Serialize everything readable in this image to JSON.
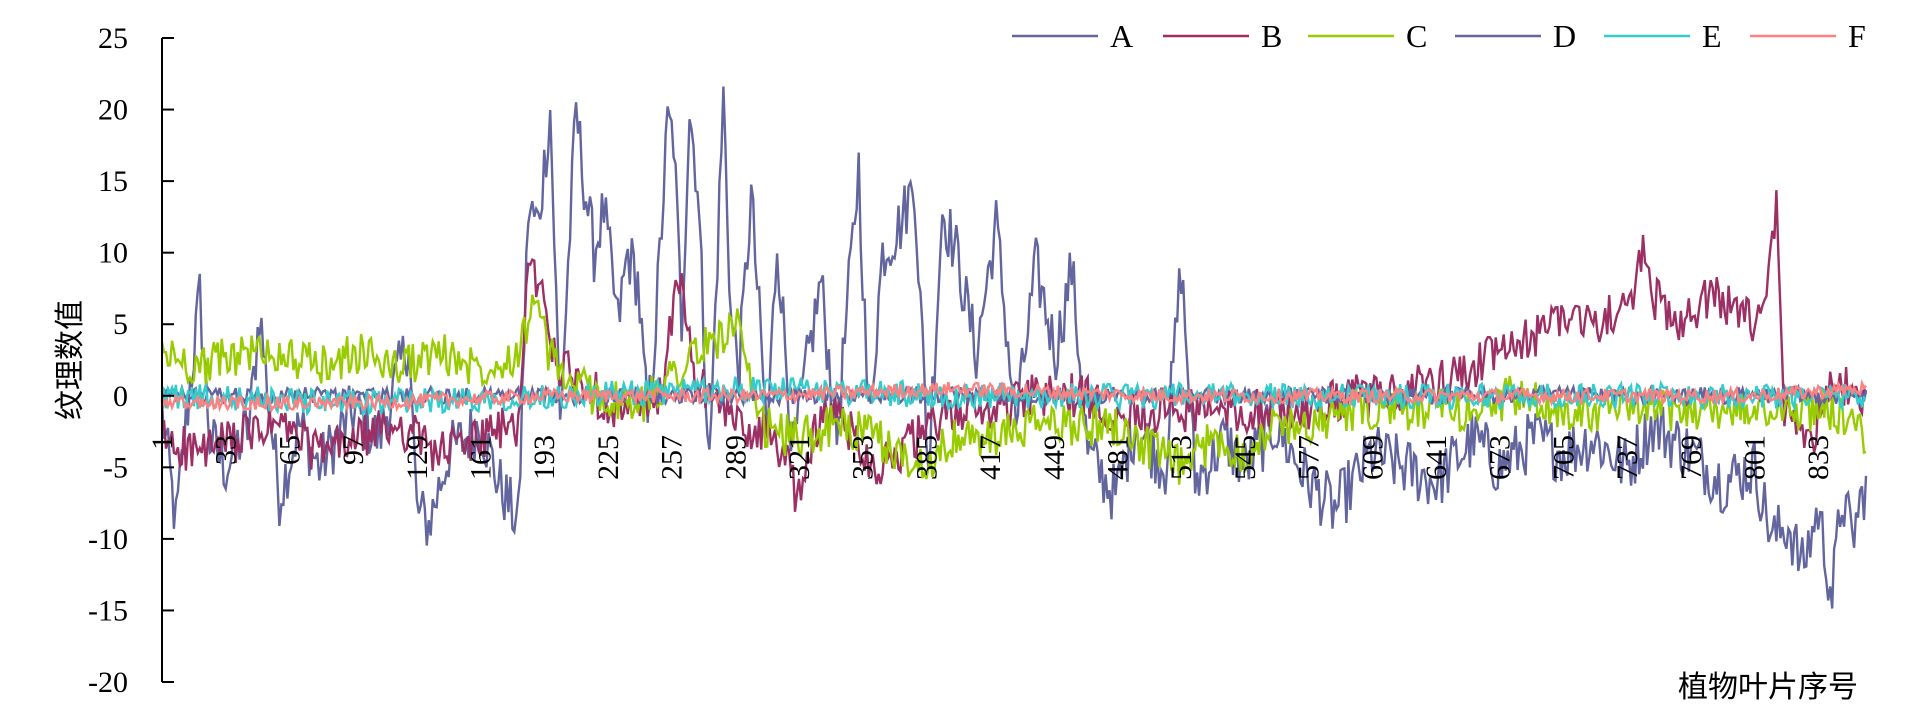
{
  "chart_data": {
    "type": "line",
    "xlabel": "植物叶片序号",
    "ylabel": "纹理数值",
    "ylim": [
      -20,
      25
    ],
    "xlim": [
      1,
      857
    ],
    "yticks": [
      25,
      20,
      15,
      10,
      5,
      0,
      -5,
      -10,
      -15,
      -20
    ],
    "xticks": [
      1,
      33,
      65,
      97,
      129,
      161,
      193,
      225,
      257,
      289,
      321,
      353,
      385,
      417,
      449,
      481,
      513,
      545,
      577,
      609,
      641,
      673,
      705,
      737,
      769,
      801,
      833
    ],
    "legend_position": "top-right",
    "series": [
      {
        "name": "A",
        "color": "#63659e",
        "points": [
          [
            1,
            -1
          ],
          [
            8,
            -9
          ],
          [
            13,
            -2
          ],
          [
            20,
            7
          ],
          [
            25,
            -3
          ],
          [
            33,
            -5
          ],
          [
            45,
            -2
          ],
          [
            50,
            6
          ],
          [
            55,
            -1
          ],
          [
            60,
            -7
          ],
          [
            70,
            -2
          ],
          [
            80,
            -5
          ],
          [
            97,
            -1
          ],
          [
            110,
            -3
          ],
          [
            125,
            4
          ],
          [
            129,
            -8
          ],
          [
            135,
            -9
          ],
          [
            145,
            -4
          ],
          [
            161,
            -2
          ],
          [
            170,
            -6
          ],
          [
            180,
            -9
          ],
          [
            185,
            13
          ],
          [
            190,
            12
          ],
          [
            196,
            20
          ],
          [
            201,
            -2
          ],
          [
            209,
            20
          ],
          [
            213,
            15
          ],
          [
            218,
            10
          ],
          [
            223,
            13
          ],
          [
            230,
            5
          ],
          [
            235,
            10
          ],
          [
            240,
            8
          ],
          [
            245,
            -2
          ],
          [
            249,
            5
          ],
          [
            255,
            19
          ],
          [
            258,
            18
          ],
          [
            262,
            5
          ],
          [
            266,
            20
          ],
          [
            270,
            15
          ],
          [
            276,
            -5
          ],
          [
            283,
            21
          ],
          [
            287,
            5
          ],
          [
            291,
            2
          ],
          [
            297,
            14
          ],
          [
            305,
            -3
          ],
          [
            310,
            11
          ],
          [
            318,
            -4
          ],
          [
            326,
            3
          ],
          [
            332,
            8
          ],
          [
            340,
            -3
          ],
          [
            351,
            16
          ],
          [
            356,
            -2
          ],
          [
            363,
            10
          ],
          [
            372,
            12
          ],
          [
            379,
            15
          ],
          [
            386,
            -5
          ],
          [
            393,
            13
          ],
          [
            400,
            10
          ],
          [
            410,
            3
          ],
          [
            420,
            12
          ],
          [
            430,
            -2
          ],
          [
            440,
            9
          ],
          [
            450,
            3
          ],
          [
            458,
            9
          ],
          [
            466,
            -4
          ],
          [
            480,
            -7
          ],
          [
            490,
            -2
          ],
          [
            505,
            -5
          ],
          [
            513,
            9
          ],
          [
            520,
            -6
          ],
          [
            535,
            -3
          ],
          [
            545,
            -5
          ],
          [
            560,
            -2
          ],
          [
            577,
            -6
          ],
          [
            590,
            -8
          ],
          [
            609,
            -4
          ],
          [
            625,
            -5
          ],
          [
            641,
            -6
          ],
          [
            660,
            -3
          ],
          [
            673,
            -5
          ],
          [
            690,
            -3
          ],
          [
            705,
            -4
          ],
          [
            720,
            -3
          ],
          [
            737,
            -5
          ],
          [
            750,
            -2
          ],
          [
            769,
            -4
          ],
          [
            785,
            -6
          ],
          [
            801,
            -5
          ],
          [
            810,
            -10
          ],
          [
            818,
            -9
          ],
          [
            825,
            -12
          ],
          [
            833,
            -8
          ],
          [
            840,
            -14
          ],
          [
            845,
            -7
          ],
          [
            850,
            -10
          ],
          [
            857,
            -6
          ]
        ],
        "noise": 2.2
      },
      {
        "name": "B",
        "color": "#9c2f64",
        "points": [
          [
            1,
            -3
          ],
          [
            20,
            -4
          ],
          [
            40,
            -3
          ],
          [
            60,
            -2
          ],
          [
            80,
            -4
          ],
          [
            100,
            -3
          ],
          [
            120,
            -2
          ],
          [
            140,
            -4
          ],
          [
            160,
            -3
          ],
          [
            180,
            -2
          ],
          [
            185,
            9
          ],
          [
            190,
            8
          ],
          [
            195,
            5
          ],
          [
            200,
            2
          ],
          [
            210,
            1
          ],
          [
            230,
            -1
          ],
          [
            250,
            -1
          ],
          [
            262,
            9
          ],
          [
            268,
            1
          ],
          [
            290,
            -2
          ],
          [
            310,
            -3
          ],
          [
            320,
            -7
          ],
          [
            330,
            -2
          ],
          [
            340,
            -1
          ],
          [
            350,
            -3
          ],
          [
            360,
            -5
          ],
          [
            380,
            -3
          ],
          [
            400,
            -1
          ],
          [
            420,
            -1
          ],
          [
            440,
            0
          ],
          [
            460,
            0
          ],
          [
            480,
            -1
          ],
          [
            500,
            -1
          ],
          [
            520,
            -1
          ],
          [
            540,
            -1
          ],
          [
            560,
            -1
          ],
          [
            580,
            -1
          ],
          [
            600,
            0
          ],
          [
            620,
            0
          ],
          [
            641,
            1
          ],
          [
            660,
            2
          ],
          [
            673,
            3
          ],
          [
            690,
            4
          ],
          [
            705,
            6
          ],
          [
            720,
            5
          ],
          [
            737,
            6
          ],
          [
            745,
            10
          ],
          [
            750,
            7
          ],
          [
            760,
            5
          ],
          [
            769,
            6
          ],
          [
            780,
            7
          ],
          [
            790,
            6
          ],
          [
            800,
            5
          ],
          [
            806,
            6
          ],
          [
            812,
            13
          ],
          [
            816,
            -1
          ],
          [
            830,
            -3
          ],
          [
            840,
            2
          ],
          [
            850,
            0
          ],
          [
            857,
            -1
          ]
        ],
        "noise": 1.6
      },
      {
        "name": "C",
        "color": "#99cc00",
        "points": [
          [
            1,
            3
          ],
          [
            20,
            2
          ],
          [
            40,
            3
          ],
          [
            60,
            3
          ],
          [
            80,
            2
          ],
          [
            100,
            3
          ],
          [
            120,
            2
          ],
          [
            140,
            3
          ],
          [
            160,
            2
          ],
          [
            180,
            3
          ],
          [
            188,
            7
          ],
          [
            195,
            3
          ],
          [
            205,
            1
          ],
          [
            220,
            0
          ],
          [
            240,
            -1
          ],
          [
            260,
            2
          ],
          [
            280,
            4
          ],
          [
            290,
            5
          ],
          [
            300,
            -2
          ],
          [
            320,
            -3
          ],
          [
            340,
            -2
          ],
          [
            360,
            -3
          ],
          [
            380,
            -5
          ],
          [
            400,
            -3
          ],
          [
            420,
            -3
          ],
          [
            440,
            -2
          ],
          [
            460,
            -2
          ],
          [
            480,
            -2
          ],
          [
            500,
            -4
          ],
          [
            513,
            -5
          ],
          [
            530,
            -3
          ],
          [
            545,
            -4
          ],
          [
            560,
            -2
          ],
          [
            577,
            -2
          ],
          [
            600,
            -1
          ],
          [
            620,
            -1
          ],
          [
            641,
            -1
          ],
          [
            660,
            -1
          ],
          [
            680,
            0
          ],
          [
            700,
            -1
          ],
          [
            720,
            -1
          ],
          [
            740,
            -1
          ],
          [
            760,
            -1
          ],
          [
            780,
            -1
          ],
          [
            800,
            -1
          ],
          [
            820,
            -1
          ],
          [
            840,
            -1
          ],
          [
            857,
            -3
          ]
        ],
        "noise": 1.5
      },
      {
        "name": "D",
        "color": "#63659e",
        "points": [
          [
            1,
            0
          ],
          [
            100,
            0
          ],
          [
            200,
            0
          ],
          [
            300,
            0
          ],
          [
            400,
            0
          ],
          [
            500,
            0
          ],
          [
            600,
            0
          ],
          [
            700,
            0
          ],
          [
            800,
            0
          ],
          [
            857,
            0
          ]
        ],
        "noise": 0.6
      },
      {
        "name": "E",
        "color": "#33cccc",
        "points": [
          [
            1,
            0
          ],
          [
            100,
            -0.5
          ],
          [
            200,
            0
          ],
          [
            300,
            0.5
          ],
          [
            400,
            0
          ],
          [
            500,
            0
          ],
          [
            600,
            0
          ],
          [
            700,
            0
          ],
          [
            800,
            0
          ],
          [
            857,
            0
          ]
        ],
        "noise": 0.9
      },
      {
        "name": "F",
        "color": "#ff8080",
        "points": [
          [
            1,
            -0.5
          ],
          [
            100,
            -0.5
          ],
          [
            200,
            0
          ],
          [
            300,
            0
          ],
          [
            400,
            0.5
          ],
          [
            500,
            0
          ],
          [
            600,
            0
          ],
          [
            700,
            0
          ],
          [
            800,
            0
          ],
          [
            857,
            0.5
          ]
        ],
        "noise": 0.5
      }
    ]
  }
}
